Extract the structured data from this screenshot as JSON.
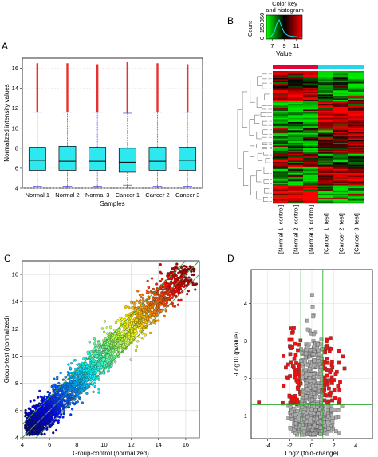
{
  "figure": {
    "panels": [
      "A",
      "B",
      "C",
      "D"
    ]
  },
  "colors": {
    "box_fill": "#2ee8f0",
    "outlier": "#e83030",
    "whisker": "#5a5adc",
    "heat_high": "#ff0000",
    "heat_low": "#00dd00",
    "control_bar": "#e4003a",
    "test_bar": "#22d8e8",
    "diag_line": "#33aa33",
    "volcano_sig": "#ee1111",
    "volcano_ns": "#aaaaaa"
  },
  "chart_data": [
    {
      "panel": "A",
      "type": "box",
      "categories": [
        "Normal 1",
        "Normal 2",
        "Normal 3",
        "Cancer 1",
        "Cancer 2",
        "Cancer 3"
      ],
      "boxes": [
        {
          "min": 4.2,
          "q1": 5.8,
          "median": 6.8,
          "q3": 8.1,
          "max": 11.6,
          "outlier_max": 16.5
        },
        {
          "min": 4.2,
          "q1": 5.8,
          "median": 6.7,
          "q3": 8.2,
          "max": 11.6,
          "outlier_max": 16.5
        },
        {
          "min": 4.2,
          "q1": 5.8,
          "median": 6.7,
          "q3": 8.1,
          "max": 11.6,
          "outlier_max": 16.4
        },
        {
          "min": 4.3,
          "q1": 5.6,
          "median": 6.6,
          "q3": 8.0,
          "max": 11.5,
          "outlier_max": 16.6
        },
        {
          "min": 4.2,
          "q1": 5.8,
          "median": 6.7,
          "q3": 8.1,
          "max": 11.6,
          "outlier_max": 16.5
        },
        {
          "min": 4.2,
          "q1": 5.8,
          "median": 6.8,
          "q3": 8.1,
          "max": 11.6,
          "outlier_max": 16.4
        }
      ],
      "xlabel": "Samples",
      "ylabel": "Normalized intensity values",
      "yticks": [
        "4",
        "6",
        "8",
        "10",
        "12",
        "14",
        "16"
      ],
      "ylim": [
        4,
        17
      ]
    },
    {
      "panel": "B",
      "type": "heatmap",
      "title": "Color key\nand histogram",
      "key_xlabel": "Value",
      "key_ylabel": "Count",
      "key_xticks": [
        "7",
        "9",
        "11"
      ],
      "key_yticks": [
        "0",
        "150",
        "350"
      ],
      "columns": [
        "[Normal 1, control]",
        "[Normal 2, control]",
        "[Normal 3, control]",
        "[Cancer 1, test]",
        "[Cancer 2, test]",
        "[Cancer 3, test]"
      ],
      "groups": [
        "control",
        "control",
        "control",
        "test",
        "test",
        "test"
      ],
      "value_range": [
        6,
        12
      ]
    },
    {
      "panel": "C",
      "type": "scatter",
      "xlabel": "Group-control (normalized)",
      "ylabel": "Group-test (normalized)",
      "xticks": [
        "4",
        "6",
        "8",
        "10",
        "12",
        "14",
        "16"
      ],
      "yticks": [
        "4",
        "6",
        "8",
        "10",
        "12",
        "14",
        "16"
      ],
      "xlim": [
        4,
        17
      ],
      "ylim": [
        4,
        17
      ],
      "fold_lines": [
        -1,
        0,
        1
      ],
      "grid": true
    },
    {
      "panel": "D",
      "type": "scatter",
      "xlabel": "Log2 (fold-change)",
      "ylabel": "-Log10 (pvalue)",
      "xticks": [
        "-4",
        "-2",
        "0",
        "2",
        "4"
      ],
      "yticks": [
        "1",
        "2",
        "3",
        "4"
      ],
      "xlim": [
        -5.5,
        5.5
      ],
      "ylim": [
        0.4,
        4.9
      ],
      "thresholds": {
        "log2fc": 1,
        "neg_log10_p": 1.3
      },
      "grid": true
    }
  ]
}
